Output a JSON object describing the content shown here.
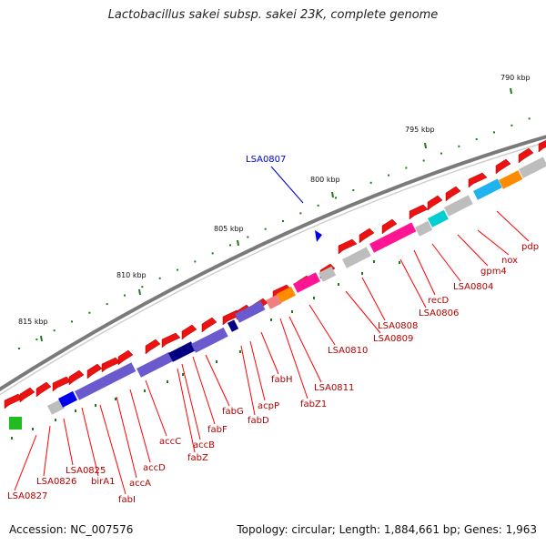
{
  "title": "Lactobacillus sakei subsp. sakei 23K, complete genome",
  "footer": {
    "accession": "Accession: NC_007576",
    "topology": "Topology: circular; Length: 1,884,661 bp; Genes: 1,963"
  },
  "colors": {
    "backbone": "#7a7a7a",
    "cds_forward": "#ee1111",
    "label_line": "#ff0000",
    "highlight_label": "#0000cc",
    "tick": "#1f7a1f",
    "gray_block": "#bdbdbd",
    "pink_block": "#ff1493",
    "cyan_block": "#00ced1",
    "sky_block": "#1eb2ee",
    "orange_block": "#ff8c00",
    "purple_block": "#6a5acd",
    "navy_block": "#000080",
    "blue_block": "#0000ee",
    "green_block": "#22bb22",
    "salmon_block": "#f08080"
  },
  "bp_ticks": [
    {
      "label": "790 kbp",
      "value_kbp": 790
    },
    {
      "label": "795 kbp",
      "value_kbp": 795
    },
    {
      "label": "800 kbp",
      "value_kbp": 800
    },
    {
      "label": "805 kbp",
      "value_kbp": 805
    },
    {
      "label": "810 kbp",
      "value_kbp": 810
    },
    {
      "label": "815 kbp",
      "value_kbp": 815
    }
  ],
  "highlight_gene": "LSA0807",
  "genes": [
    "pdp",
    "nox",
    "gpm4",
    "LSA0804",
    "LSA0806",
    "recD",
    "LSA0808",
    "LSA0809",
    "LSA0810",
    "LSA0811",
    "fabZ1",
    "fabH",
    "acpP",
    "fabD",
    "fabG",
    "fabF",
    "fabZ",
    "accB",
    "accC",
    "accD",
    "accA",
    "birA1",
    "fabI",
    "LSA0825",
    "LSA0826",
    "LSA0827"
  ]
}
